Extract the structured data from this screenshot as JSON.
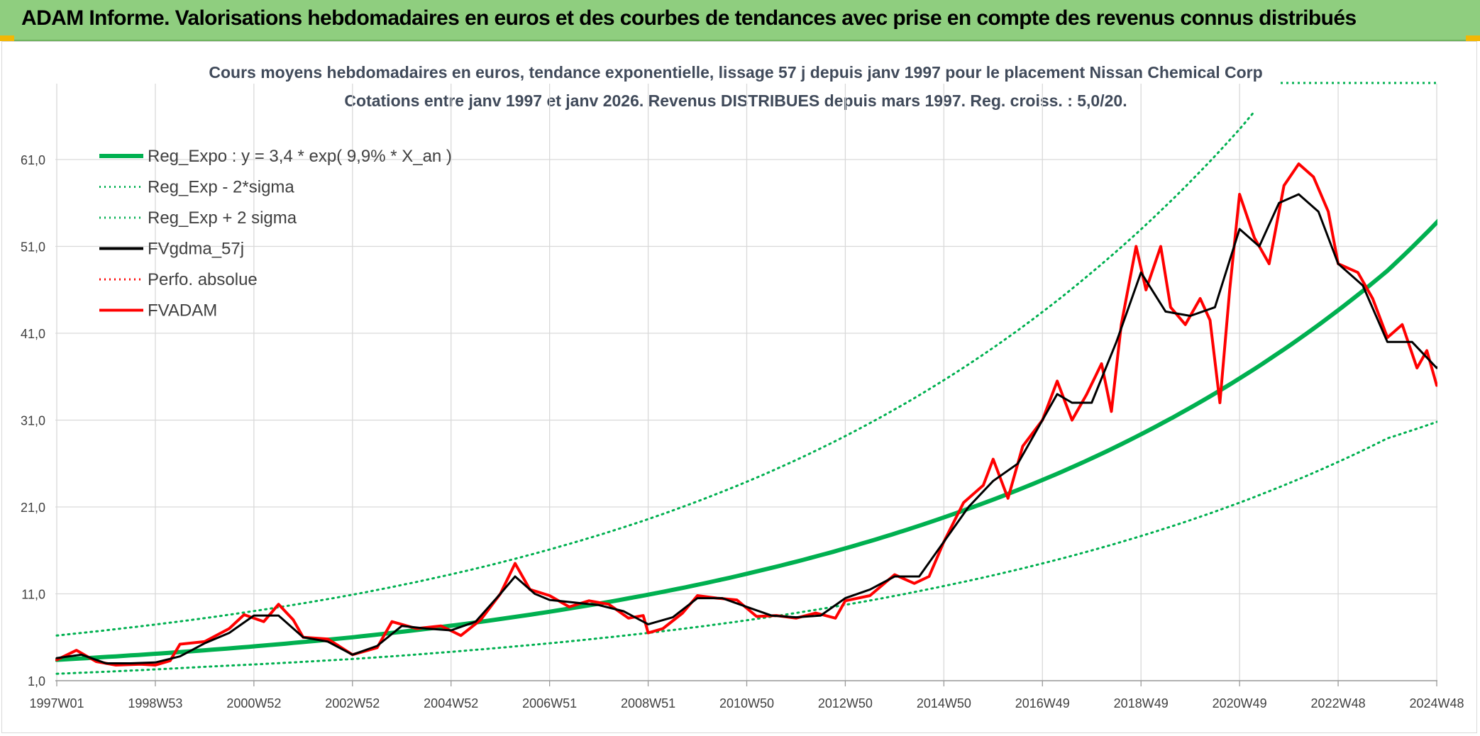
{
  "header": {
    "title": "ADAM Informe. Valorisations hebdomadaires en euros et des courbes de tendances avec prise en compte des revenus connus distribués"
  },
  "chart_data": {
    "type": "line",
    "title_line1": "Cours moyens hebdomadaires en euros, tendance exponentielle, lissage 57 j depuis janv 1997 pour le placement Nissan Chemical Corp",
    "title_line2": "Cotations entre janv 1997 et janv 2026. Revenus DISTRIBUES depuis mars 1997. Reg. croiss. : 5,0/20.",
    "xlabel": "",
    "ylabel": "",
    "xlim": [
      1997.0,
      2026.1
    ],
    "ylim": [
      1.0,
      70.0
    ],
    "grid": true,
    "legend_position": "top-left",
    "x_ticks": [
      {
        "x": 1997.0,
        "label": "1997W01"
      },
      {
        "x": 1999.0,
        "label": "1998W53"
      },
      {
        "x": 2001.0,
        "label": "2000W52"
      },
      {
        "x": 2003.0,
        "label": "2002W52"
      },
      {
        "x": 2005.0,
        "label": "2004W52"
      },
      {
        "x": 2007.0,
        "label": "2006W51"
      },
      {
        "x": 2009.0,
        "label": "2008W51"
      },
      {
        "x": 2011.0,
        "label": "2010W50"
      },
      {
        "x": 2013.0,
        "label": "2012W50"
      },
      {
        "x": 2015.0,
        "label": "2014W50"
      },
      {
        "x": 2017.0,
        "label": "2016W49"
      },
      {
        "x": 2019.0,
        "label": "2018W49"
      },
      {
        "x": 2021.0,
        "label": "2020W49"
      },
      {
        "x": 2023.0,
        "label": "2022W48"
      },
      {
        "x": 2025.0,
        "label": "2024W48"
      }
    ],
    "y_ticks": [
      {
        "y": 1.0,
        "label": "1,0"
      },
      {
        "y": 11.0,
        "label": "11,0"
      },
      {
        "y": 21.0,
        "label": "21,0"
      },
      {
        "y": 31.0,
        "label": "31,0"
      },
      {
        "y": 41.0,
        "label": "41,0"
      },
      {
        "y": 51.0,
        "label": "51,0"
      },
      {
        "y": 61.0,
        "label": "61,0"
      }
    ],
    "series": [
      {
        "name": "Reg_Expo : y = 3,4 * exp( 9,9% *  X_an )",
        "color": "#00b050",
        "style": "solid",
        "width": 6,
        "points": [
          [
            1997.0,
            3.4
          ],
          [
            2000.0,
            4.5
          ],
          [
            2003.0,
            6.0
          ],
          [
            2006.0,
            8.1
          ],
          [
            2009.0,
            10.9
          ],
          [
            2012.0,
            14.7
          ],
          [
            2015.0,
            19.8
          ],
          [
            2018.0,
            26.6
          ],
          [
            2021.0,
            35.8
          ],
          [
            2024.0,
            48.2
          ],
          [
            2026.1,
            60.6
          ]
        ]
      },
      {
        "name": "Reg_Exp - 2*sigma",
        "color": "#00b050",
        "style": "dotted",
        "width": 3,
        "points": [
          [
            1997.0,
            1.8
          ],
          [
            2000.0,
            2.6
          ],
          [
            2003.0,
            3.5
          ],
          [
            2006.0,
            4.8
          ],
          [
            2009.0,
            6.5
          ],
          [
            2012.0,
            8.8
          ],
          [
            2015.0,
            11.9
          ],
          [
            2018.0,
            16.0
          ],
          [
            2021.0,
            21.5
          ],
          [
            2024.0,
            28.9
          ],
          [
            2026.1,
            33.0
          ]
        ]
      },
      {
        "name": "Reg_Exp + 2 sigma",
        "color": "#00b050",
        "style": "dotted",
        "width": 3,
        "points": [
          [
            1997.0,
            6.2
          ],
          [
            2000.0,
            8.2
          ],
          [
            2003.0,
            10.9
          ],
          [
            2006.0,
            14.6
          ],
          [
            2009.0,
            19.6
          ],
          [
            2012.0,
            26.4
          ],
          [
            2015.0,
            35.6
          ],
          [
            2018.0,
            48.0
          ],
          [
            2021.0,
            64.5
          ],
          [
            2022.2,
            73.0
          ]
        ]
      },
      {
        "name": "FVgdma_57j",
        "color": "#000000",
        "style": "solid",
        "width": 3,
        "points": [
          [
            1997.0,
            3.6
          ],
          [
            1997.5,
            4.0
          ],
          [
            1998.0,
            3.0
          ],
          [
            1998.5,
            3.0
          ],
          [
            1999.0,
            3.1
          ],
          [
            1999.5,
            3.8
          ],
          [
            2000.0,
            5.3
          ],
          [
            2000.5,
            6.5
          ],
          [
            2001.0,
            8.5
          ],
          [
            2001.5,
            8.5
          ],
          [
            2002.0,
            6.0
          ],
          [
            2002.5,
            5.5
          ],
          [
            2003.0,
            4.0
          ],
          [
            2003.5,
            5.0
          ],
          [
            2004.0,
            7.3
          ],
          [
            2004.5,
            7.0
          ],
          [
            2005.0,
            6.8
          ],
          [
            2005.5,
            7.8
          ],
          [
            2006.0,
            11.0
          ],
          [
            2006.3,
            13.0
          ],
          [
            2006.7,
            11.0
          ],
          [
            2007.0,
            10.3
          ],
          [
            2007.5,
            10.0
          ],
          [
            2008.0,
            9.7
          ],
          [
            2008.5,
            9.0
          ],
          [
            2009.0,
            7.5
          ],
          [
            2009.5,
            8.3
          ],
          [
            2010.0,
            10.5
          ],
          [
            2010.5,
            10.5
          ],
          [
            2011.0,
            9.5
          ],
          [
            2011.5,
            8.5
          ],
          [
            2012.0,
            8.3
          ],
          [
            2012.5,
            8.5
          ],
          [
            2013.0,
            10.5
          ],
          [
            2013.5,
            11.5
          ],
          [
            2014.0,
            13.0
          ],
          [
            2014.5,
            13.0
          ],
          [
            2015.0,
            17.0
          ],
          [
            2015.5,
            21.0
          ],
          [
            2016.0,
            24.0
          ],
          [
            2016.5,
            26.0
          ],
          [
            2017.0,
            31.0
          ],
          [
            2017.3,
            34.0
          ],
          [
            2017.6,
            33.0
          ],
          [
            2018.0,
            33.0
          ],
          [
            2018.5,
            40.0
          ],
          [
            2019.0,
            48.0
          ],
          [
            2019.5,
            43.5
          ],
          [
            2020.0,
            43.0
          ],
          [
            2020.5,
            44.0
          ],
          [
            2021.0,
            53.0
          ],
          [
            2021.4,
            51.0
          ],
          [
            2021.8,
            56.0
          ],
          [
            2022.2,
            57.0
          ],
          [
            2022.6,
            55.0
          ],
          [
            2023.0,
            49.0
          ],
          [
            2023.5,
            46.5
          ],
          [
            2024.0,
            40.0
          ],
          [
            2024.5,
            40.0
          ],
          [
            2025.0,
            37.0
          ],
          [
            2025.5,
            39.5
          ],
          [
            2026.1,
            40.0
          ]
        ]
      },
      {
        "name": "Perfo. absolue",
        "color": "#ff0000",
        "style": "dotted",
        "width": 2,
        "points": []
      },
      {
        "name": "FVADAM",
        "color": "#ff0000",
        "style": "solid",
        "width": 4,
        "points": [
          [
            1997.0,
            3.4
          ],
          [
            1997.4,
            4.5
          ],
          [
            1997.8,
            3.2
          ],
          [
            1998.2,
            2.8
          ],
          [
            1998.7,
            2.9
          ],
          [
            1999.0,
            2.8
          ],
          [
            1999.3,
            3.3
          ],
          [
            1999.5,
            5.2
          ],
          [
            2000.0,
            5.5
          ],
          [
            2000.5,
            7.0
          ],
          [
            2000.8,
            8.6
          ],
          [
            2001.2,
            7.8
          ],
          [
            2001.5,
            9.8
          ],
          [
            2001.8,
            8.0
          ],
          [
            2002.0,
            6.0
          ],
          [
            2002.5,
            5.8
          ],
          [
            2003.0,
            4.0
          ],
          [
            2003.5,
            4.8
          ],
          [
            2003.8,
            7.8
          ],
          [
            2004.3,
            7.0
          ],
          [
            2004.8,
            7.3
          ],
          [
            2005.2,
            6.2
          ],
          [
            2005.6,
            8.0
          ],
          [
            2006.0,
            11.0
          ],
          [
            2006.3,
            14.5
          ],
          [
            2006.6,
            11.5
          ],
          [
            2007.0,
            10.8
          ],
          [
            2007.4,
            9.5
          ],
          [
            2007.8,
            10.2
          ],
          [
            2008.2,
            9.8
          ],
          [
            2008.6,
            8.2
          ],
          [
            2008.9,
            8.5
          ],
          [
            2009.0,
            6.5
          ],
          [
            2009.3,
            7.0
          ],
          [
            2009.7,
            8.8
          ],
          [
            2010.0,
            10.8
          ],
          [
            2010.4,
            10.5
          ],
          [
            2010.8,
            10.3
          ],
          [
            2011.2,
            8.4
          ],
          [
            2011.6,
            8.5
          ],
          [
            2012.0,
            8.2
          ],
          [
            2012.4,
            8.8
          ],
          [
            2012.8,
            8.2
          ],
          [
            2013.0,
            10.2
          ],
          [
            2013.5,
            10.8
          ],
          [
            2014.0,
            13.2
          ],
          [
            2014.4,
            12.2
          ],
          [
            2014.7,
            13.0
          ],
          [
            2015.0,
            17.0
          ],
          [
            2015.4,
            21.5
          ],
          [
            2015.8,
            23.5
          ],
          [
            2016.0,
            26.5
          ],
          [
            2016.3,
            22.0
          ],
          [
            2016.6,
            28.0
          ],
          [
            2017.0,
            31.0
          ],
          [
            2017.3,
            35.5
          ],
          [
            2017.6,
            31.0
          ],
          [
            2017.9,
            34.0
          ],
          [
            2018.2,
            37.5
          ],
          [
            2018.4,
            32.0
          ],
          [
            2018.6,
            42.0
          ],
          [
            2018.9,
            51.0
          ],
          [
            2019.1,
            46.0
          ],
          [
            2019.4,
            51.0
          ],
          [
            2019.6,
            44.0
          ],
          [
            2019.9,
            42.0
          ],
          [
            2020.2,
            45.0
          ],
          [
            2020.4,
            42.5
          ],
          [
            2020.6,
            33.0
          ],
          [
            2020.8,
            46.0
          ],
          [
            2021.0,
            57.0
          ],
          [
            2021.3,
            52.0
          ],
          [
            2021.6,
            49.0
          ],
          [
            2021.9,
            58.0
          ],
          [
            2022.2,
            60.5
          ],
          [
            2022.5,
            59.0
          ],
          [
            2022.8,
            55.0
          ],
          [
            2023.0,
            49.0
          ],
          [
            2023.4,
            48.0
          ],
          [
            2023.7,
            45.0
          ],
          [
            2024.0,
            40.5
          ],
          [
            2024.3,
            42.0
          ],
          [
            2024.6,
            37.0
          ],
          [
            2024.8,
            39.0
          ],
          [
            2025.0,
            35.0
          ],
          [
            2025.3,
            36.0
          ],
          [
            2025.6,
            41.0
          ],
          [
            2025.8,
            40.0
          ],
          [
            2026.1,
            39.5
          ]
        ]
      }
    ]
  }
}
